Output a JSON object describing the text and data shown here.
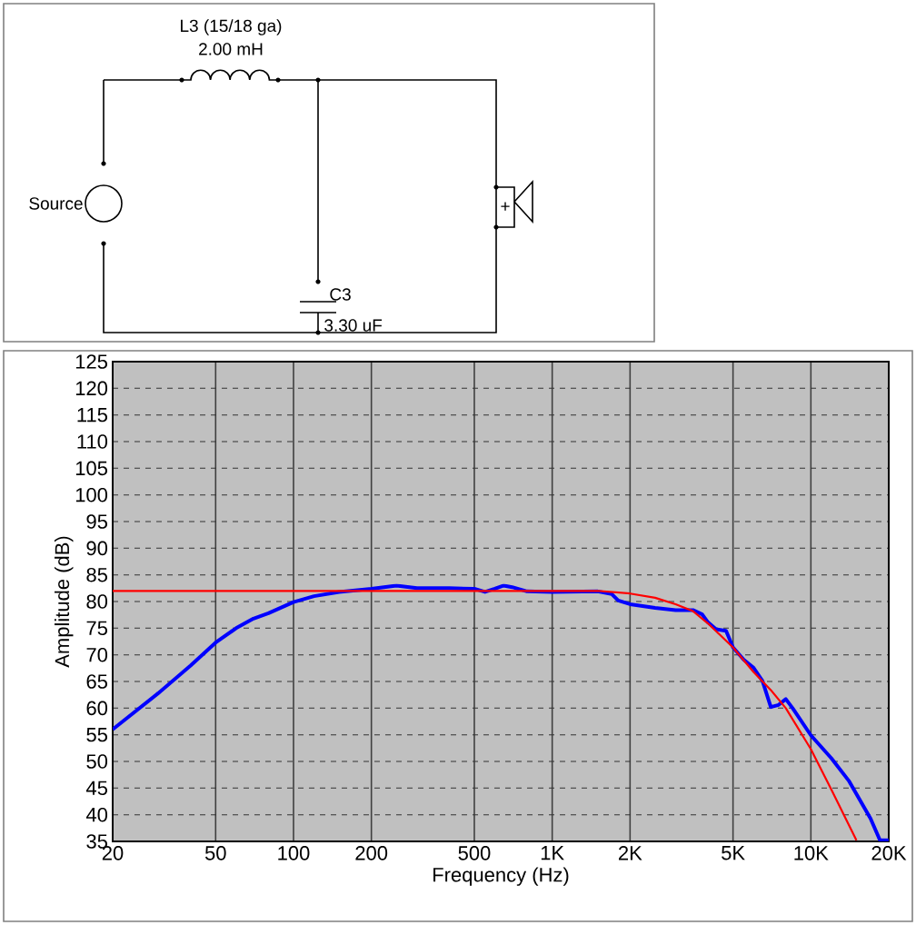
{
  "chart_data": {
    "type": "line",
    "xlabel": "Frequency (Hz)",
    "ylabel": "Amplitude (dB)",
    "log": "x",
    "grid": true,
    "xlim": [
      20,
      20000
    ],
    "ylim": [
      35,
      125
    ],
    "xticks": [
      20,
      50,
      100,
      200,
      500,
      {
        "value": 1000,
        "label": "1K"
      },
      {
        "value": 2000,
        "label": "2K"
      },
      {
        "value": 5000,
        "label": "5K"
      },
      {
        "value": 10000,
        "label": "10K"
      },
      {
        "value": 20000,
        "label": "20K"
      }
    ],
    "yticks": [
      35,
      40,
      45,
      50,
      55,
      60,
      65,
      70,
      75,
      80,
      85,
      90,
      95,
      100,
      105,
      110,
      115,
      120,
      125
    ],
    "series": [
      {
        "color": "#ff0000",
        "x": [
          20,
          1500,
          2000,
          2500,
          3000,
          3500,
          4000,
          5000,
          6000,
          7000,
          8000,
          10000,
          12000,
          15000
        ],
        "values": [
          82.0,
          82.0,
          81.5,
          80.7,
          79.5,
          78.2,
          75.9,
          71.4,
          66.8,
          63.4,
          60.0,
          52.3,
          44.7,
          35.2
        ]
      },
      {
        "color": "#0000ff",
        "x": [
          20,
          30,
          40,
          50,
          60,
          70,
          80,
          100,
          120,
          150,
          200,
          250,
          300,
          400,
          500,
          550,
          600,
          650,
          700,
          800,
          1000,
          1500,
          1700,
          1800,
          2000,
          2500,
          3000,
          3500,
          3800,
          4000,
          4300,
          4700,
          5000,
          5500,
          6000,
          6500,
          7000,
          7500,
          8000,
          8500,
          10000,
          12000,
          14000,
          17000,
          18500,
          20000
        ],
        "values": [
          56.0,
          62.8,
          68.0,
          72.3,
          75.0,
          76.8,
          77.8,
          79.9,
          81.0,
          81.8,
          82.4,
          83.0,
          82.5,
          82.5,
          82.4,
          81.8,
          82.4,
          83.0,
          82.7,
          81.9,
          81.8,
          81.9,
          81.4,
          80.2,
          79.5,
          78.8,
          78.4,
          78.4,
          77.6,
          76.1,
          74.8,
          74.5,
          71.4,
          69.1,
          67.6,
          65.1,
          60.2,
          60.6,
          61.7,
          60.0,
          54.9,
          50.6,
          46.4,
          39.3,
          35.2,
          35.2
        ]
      }
    ],
    "annotations": [
      "L3 (15/18 ga)",
      "2.00 mH",
      "Source",
      "C3",
      "3.30 uF",
      "+"
    ]
  }
}
